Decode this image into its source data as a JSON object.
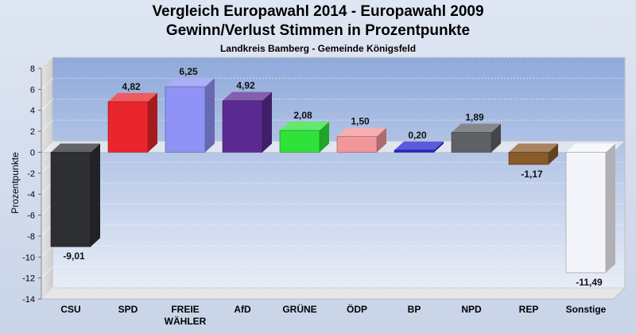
{
  "chart_data": {
    "type": "bar",
    "title": "Vergleich Europawahl 2014 - Europawahl 2009",
    "subtitle": "Gewinn/Verlust Stimmen in Prozentpunkte",
    "caption": "Landkreis Bamberg - Gemeinde Königsfeld",
    "ylabel": "Prozentpunkte",
    "xlabel": "",
    "ylim": [
      -14,
      8
    ],
    "yticks": [
      "8",
      "6",
      "4",
      "2",
      "0",
      "-2",
      "-4",
      "-6",
      "-8",
      "-10",
      "-12",
      "-14"
    ],
    "yticks_values": [
      8,
      6,
      4,
      2,
      0,
      -2,
      -4,
      -6,
      -8,
      -10,
      -12,
      -14
    ],
    "grid": true,
    "categories": [
      "CSU",
      "SPD",
      "FREIE\nWÄHLER",
      "AfD",
      "GRÜNE",
      "ÖDP",
      "BP",
      "NPD",
      "REP",
      "Sonstige"
    ],
    "values": [
      -9.01,
      4.82,
      6.25,
      4.92,
      2.08,
      1.5,
      0.2,
      1.89,
      -1.17,
      -11.49
    ],
    "value_labels": [
      "-9,01",
      "4,82",
      "6,25",
      "4,92",
      "2,08",
      "1,50",
      "0,20",
      "1,89",
      "-1,17",
      "-11,49"
    ],
    "colors": [
      "#2e2f33",
      "#e8262b",
      "#8f93f5",
      "#5a2a92",
      "#2fe23a",
      "#f2969a",
      "#2424d0",
      "#5e6066",
      "#8a5a2a",
      "#f4f5fb"
    ]
  }
}
